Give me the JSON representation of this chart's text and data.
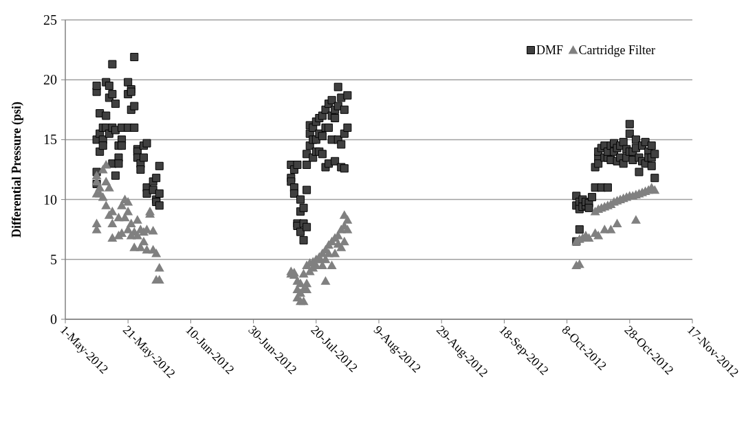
{
  "chart_data": {
    "type": "scatter",
    "ylabel": "Differential Pressure (psi)",
    "xlim": [
      "2012-05-01",
      "2012-11-17"
    ],
    "xticks": [
      {
        "value": "2012-05-01",
        "label": "1-May-2012"
      },
      {
        "value": "2012-05-21",
        "label": "21-May-2012"
      },
      {
        "value": "2012-06-10",
        "label": "10-Jun-2012"
      },
      {
        "value": "2012-06-30",
        "label": "30-Jun-2012"
      },
      {
        "value": "2012-07-20",
        "label": "20-Jul-2012"
      },
      {
        "value": "2012-08-09",
        "label": "9-Aug-2012"
      },
      {
        "value": "2012-08-29",
        "label": "29-Aug-2012"
      },
      {
        "value": "2012-09-18",
        "label": "18-Sep-2012"
      },
      {
        "value": "2012-10-08",
        "label": "8-Oct-2012"
      },
      {
        "value": "2012-10-28",
        "label": "28-Oct-2012"
      },
      {
        "value": "2012-11-17",
        "label": "17-Nov-2012"
      }
    ],
    "ylim": [
      0,
      25
    ],
    "yticks": [
      0,
      5,
      10,
      15,
      20,
      25
    ],
    "grid": "y",
    "legend": "top right",
    "series": [
      {
        "name": "DMF",
        "color": "#404040",
        "marker": "square",
        "x": [
          "2012-05-11",
          "2012-05-11",
          "2012-05-11",
          "2012-05-11",
          "2012-05-11",
          "2012-05-12",
          "2012-05-12",
          "2012-05-12",
          "2012-05-13",
          "2012-05-13",
          "2012-05-13",
          "2012-05-14",
          "2012-05-14",
          "2012-05-14",
          "2012-05-15",
          "2012-05-15",
          "2012-05-15",
          "2012-05-16",
          "2012-05-16",
          "2012-05-16",
          "2012-05-16",
          "2012-05-17",
          "2012-05-17",
          "2012-05-17",
          "2012-05-18",
          "2012-05-18",
          "2012-05-18",
          "2012-05-19",
          "2012-05-19",
          "2012-05-19",
          "2012-05-21",
          "2012-05-21",
          "2012-05-21",
          "2012-05-22",
          "2012-05-22",
          "2012-05-22",
          "2012-05-23",
          "2012-05-23",
          "2012-05-23",
          "2012-05-24",
          "2012-05-24",
          "2012-05-24",
          "2012-05-25",
          "2012-05-25",
          "2012-05-26",
          "2012-05-26",
          "2012-05-27",
          "2012-05-27",
          "2012-05-27",
          "2012-05-29",
          "2012-05-29",
          "2012-05-30",
          "2012-05-30",
          "2012-05-30",
          "2012-05-31",
          "2012-05-31",
          "2012-05-31",
          "2012-07-12",
          "2012-07-12",
          "2012-07-12",
          "2012-07-13",
          "2012-07-13",
          "2012-07-13",
          "2012-07-14",
          "2012-07-14",
          "2012-07-14",
          "2012-07-15",
          "2012-07-15",
          "2012-07-15",
          "2012-07-16",
          "2012-07-16",
          "2012-07-16",
          "2012-07-17",
          "2012-07-17",
          "2012-07-17",
          "2012-07-17",
          "2012-07-18",
          "2012-07-18",
          "2012-07-18",
          "2012-07-19",
          "2012-07-19",
          "2012-07-19",
          "2012-07-20",
          "2012-07-20",
          "2012-07-20",
          "2012-07-21",
          "2012-07-21",
          "2012-07-21",
          "2012-07-22",
          "2012-07-22",
          "2012-07-22",
          "2012-07-23",
          "2012-07-23",
          "2012-07-23",
          "2012-07-24",
          "2012-07-24",
          "2012-07-24",
          "2012-07-25",
          "2012-07-25",
          "2012-07-25",
          "2012-07-26",
          "2012-07-26",
          "2012-07-26",
          "2012-07-27",
          "2012-07-27",
          "2012-07-27",
          "2012-07-28",
          "2012-07-28",
          "2012-07-28",
          "2012-07-29",
          "2012-07-29",
          "2012-07-29",
          "2012-07-30",
          "2012-07-30",
          "2012-10-11",
          "2012-10-11",
          "2012-10-11",
          "2012-10-12",
          "2012-10-12",
          "2012-10-12",
          "2012-10-13",
          "2012-10-13",
          "2012-10-14",
          "2012-10-14",
          "2012-10-15",
          "2012-10-15",
          "2012-10-16",
          "2012-10-17",
          "2012-10-17",
          "2012-10-18",
          "2012-10-18",
          "2012-10-18",
          "2012-10-19",
          "2012-10-19",
          "2012-10-20",
          "2012-10-20",
          "2012-10-21",
          "2012-10-21",
          "2012-10-21",
          "2012-10-22",
          "2012-10-22",
          "2012-10-23",
          "2012-10-23",
          "2012-10-24",
          "2012-10-24",
          "2012-10-25",
          "2012-10-25",
          "2012-10-26",
          "2012-10-26",
          "2012-10-27",
          "2012-10-27",
          "2012-10-28",
          "2012-10-28",
          "2012-10-28",
          "2012-10-29",
          "2012-10-29",
          "2012-10-30",
          "2012-10-30",
          "2012-10-31",
          "2012-10-31",
          "2012-11-01",
          "2012-11-01",
          "2012-11-02",
          "2012-11-02",
          "2012-11-03",
          "2012-11-03",
          "2012-11-04",
          "2012-11-04",
          "2012-11-04",
          "2012-11-05",
          "2012-11-05"
        ],
        "values": [
          19,
          19.5,
          15,
          12.3,
          11.3,
          17.2,
          15.5,
          14,
          15,
          14.5,
          16,
          16,
          19.8,
          17,
          19.5,
          18.5,
          15.5,
          21.3,
          18.8,
          16,
          13,
          18,
          15.8,
          12,
          14.5,
          13.5,
          13,
          16,
          15,
          14.5,
          19.8,
          18.8,
          16,
          19.2,
          19,
          17.5,
          21.9,
          17.8,
          16,
          14.2,
          14,
          13.5,
          13,
          12.5,
          14.5,
          13.5,
          14.7,
          11,
          10.5,
          11.5,
          10.8,
          11.8,
          10,
          9.8,
          12.8,
          9.5,
          10.5,
          11.8,
          12.9,
          11.5,
          12.5,
          11,
          10.5,
          12.9,
          8,
          7.8,
          9,
          7.3,
          10,
          6.6,
          8,
          9.3,
          10.8,
          7.7,
          12.9,
          13.8,
          15.5,
          16.2,
          14.5,
          15,
          13.5,
          16,
          16.5,
          15,
          14,
          16.8,
          14,
          15.5,
          17,
          13.8,
          15.3,
          16,
          17.5,
          12.7,
          18,
          13,
          16,
          18.3,
          17,
          15,
          17.5,
          13.2,
          16.8,
          19.4,
          15,
          17.8,
          18.5,
          14.6,
          12.7,
          17.5,
          15.5,
          12.6,
          18.7,
          16,
          6.5,
          9.5,
          10.3,
          7.5,
          9.8,
          9.2,
          10,
          9.4,
          9.5,
          9.8,
          9.7,
          9.3,
          10.2,
          11,
          12.7,
          13.5,
          13,
          14,
          11,
          14.3,
          13.5,
          14.5,
          13.5,
          14,
          11,
          14.5,
          13.3,
          14.7,
          14,
          13.2,
          14.3,
          14.5,
          13.5,
          13,
          14.8,
          13.5,
          14.2,
          16.3,
          15.5,
          14,
          14,
          13.3,
          15,
          14.3,
          13.5,
          12.3,
          14.5,
          13.2,
          14.8,
          13,
          14,
          13.5,
          14.5,
          13.5,
          12.8,
          13.8,
          11.8
        ]
      },
      {
        "name": "Cartridge Filter",
        "color": "#808080",
        "marker": "triangle",
        "x": [
          "2012-05-11",
          "2012-05-11",
          "2012-05-11",
          "2012-05-11",
          "2012-05-11",
          "2012-05-12",
          "2012-05-12",
          "2012-05-13",
          "2012-05-13",
          "2012-05-14",
          "2012-05-14",
          "2012-05-14",
          "2012-05-15",
          "2012-05-15",
          "2012-05-16",
          "2012-05-16",
          "2012-05-16",
          "2012-05-18",
          "2012-05-18",
          "2012-05-19",
          "2012-05-19",
          "2012-05-20",
          "2012-05-20",
          "2012-05-21",
          "2012-05-21",
          "2012-05-21",
          "2012-05-22",
          "2012-05-22",
          "2012-05-23",
          "2012-05-23",
          "2012-05-24",
          "2012-05-24",
          "2012-05-25",
          "2012-05-25",
          "2012-05-26",
          "2012-05-26",
          "2012-05-27",
          "2012-05-27",
          "2012-05-28",
          "2012-05-28",
          "2012-05-29",
          "2012-05-29",
          "2012-05-30",
          "2012-05-30",
          "2012-05-31",
          "2012-05-31",
          "2012-07-12",
          "2012-07-12",
          "2012-07-13",
          "2012-07-13",
          "2012-07-14",
          "2012-07-14",
          "2012-07-14",
          "2012-07-15",
          "2012-07-15",
          "2012-07-15",
          "2012-07-16",
          "2012-07-16",
          "2012-07-16",
          "2012-07-17",
          "2012-07-17",
          "2012-07-17",
          "2012-07-18",
          "2012-07-18",
          "2012-07-19",
          "2012-07-19",
          "2012-07-20",
          "2012-07-20",
          "2012-07-21",
          "2012-07-21",
          "2012-07-22",
          "2012-07-22",
          "2012-07-23",
          "2012-07-23",
          "2012-07-23",
          "2012-07-24",
          "2012-07-24",
          "2012-07-25",
          "2012-07-25",
          "2012-07-26",
          "2012-07-26",
          "2012-07-27",
          "2012-07-27",
          "2012-07-28",
          "2012-07-28",
          "2012-07-29",
          "2012-07-29",
          "2012-07-29",
          "2012-07-30",
          "2012-07-30",
          "2012-10-11",
          "2012-10-11",
          "2012-10-12",
          "2012-10-12",
          "2012-10-13",
          "2012-10-14",
          "2012-10-15",
          "2012-10-17",
          "2012-10-17",
          "2012-10-18",
          "2012-10-18",
          "2012-10-19",
          "2012-10-20",
          "2012-10-20",
          "2012-10-21",
          "2012-10-22",
          "2012-10-22",
          "2012-10-23",
          "2012-10-24",
          "2012-10-24",
          "2012-10-25",
          "2012-10-26",
          "2012-10-27",
          "2012-10-28",
          "2012-10-29",
          "2012-10-30",
          "2012-10-30",
          "2012-10-31",
          "2012-11-01",
          "2012-11-02",
          "2012-11-03",
          "2012-11-04",
          "2012-11-05"
        ],
        "values": [
          8,
          7.5,
          11.5,
          12,
          10.5,
          11,
          10.5,
          10.2,
          12.5,
          12.9,
          11.5,
          9.5,
          8.7,
          11,
          6.8,
          9,
          8,
          7,
          8.5,
          9.5,
          7.2,
          10,
          8.5,
          9.8,
          9,
          7.5,
          8,
          7,
          6,
          7.3,
          8.3,
          7,
          7.5,
          6,
          7.3,
          6.5,
          5.8,
          7.5,
          8.8,
          9,
          7.4,
          5.8,
          5.5,
          3.3,
          4.3,
          3.3,
          3.8,
          4,
          3.9,
          3.7,
          2.5,
          3.2,
          1.8,
          1.5,
          2.2,
          3,
          1.5,
          2.5,
          3.8,
          4.5,
          2.5,
          3,
          4.7,
          4,
          4.8,
          4.3,
          5,
          4.5,
          5.2,
          5,
          5.5,
          4.5,
          3.2,
          5.8,
          5,
          6.2,
          5.5,
          6.5,
          4.5,
          6.8,
          5.5,
          7,
          6.3,
          7.5,
          6,
          8.7,
          7.8,
          6.5,
          8.3,
          7.5,
          4.5,
          6.5,
          4.6,
          6.7,
          6.8,
          7,
          6.8,
          7.2,
          9,
          7,
          9.2,
          9.3,
          7.5,
          9.4,
          9.5,
          7.5,
          9.6,
          9.8,
          8,
          9.9,
          10,
          10.1,
          10.2,
          10.3,
          10.3,
          8.3,
          10.4,
          10.5,
          10.6,
          10.7,
          10.8,
          11,
          10.8
        ]
      }
    ]
  }
}
